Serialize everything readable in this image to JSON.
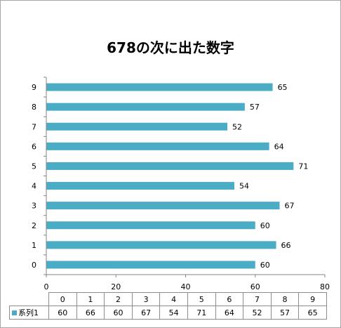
{
  "chart_data": {
    "type": "bar",
    "orientation": "horizontal",
    "title": "678の次に出た数字",
    "categories": [
      "0",
      "1",
      "2",
      "3",
      "4",
      "5",
      "6",
      "7",
      "8",
      "9"
    ],
    "series": [
      {
        "name": "系列1",
        "values": [
          60,
          66,
          60,
          67,
          54,
          71,
          64,
          52,
          57,
          65
        ],
        "color": "#4bacc6"
      }
    ],
    "xlim": [
      0,
      80
    ],
    "xticks": [
      0,
      20,
      40,
      60,
      80
    ],
    "grid": false,
    "data_labels": true,
    "data_table": true
  }
}
